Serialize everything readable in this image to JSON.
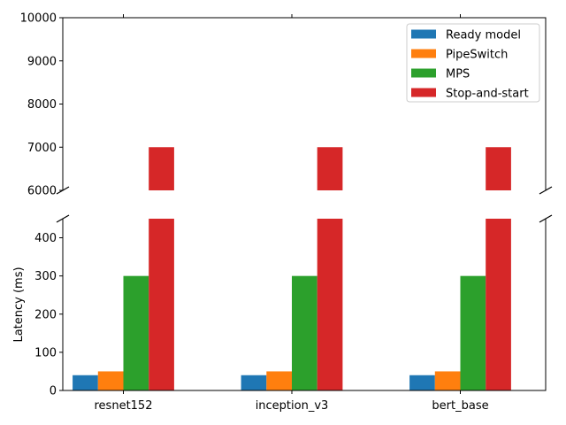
{
  "chart_data": {
    "type": "bar",
    "title": "",
    "xlabel": "",
    "ylabel": "Latency (ms)",
    "categories": [
      "resnet152",
      "inception_v3",
      "bert_base"
    ],
    "series": [
      {
        "name": "Ready model",
        "color": "#1f77b4",
        "values": [
          40,
          40,
          40
        ]
      },
      {
        "name": "PipeSwitch",
        "color": "#ff7f0e",
        "values": [
          50,
          50,
          50
        ]
      },
      {
        "name": "MPS",
        "color": "#2ca02c",
        "values": [
          300,
          300,
          300
        ]
      },
      {
        "name": "Stop-and-start",
        "color": "#d62728",
        "values": [
          7000,
          7000,
          7000
        ]
      }
    ],
    "axis_break": true,
    "upper_ylim": [
      6000,
      10000
    ],
    "upper_yticks": [
      "6000",
      "7000",
      "8000",
      "9000",
      "10000"
    ],
    "lower_ylim": [
      0,
      450
    ],
    "lower_yticks": [
      "0",
      "100",
      "200",
      "300",
      "400"
    ],
    "grid": false,
    "legend_position": "upper-right"
  }
}
